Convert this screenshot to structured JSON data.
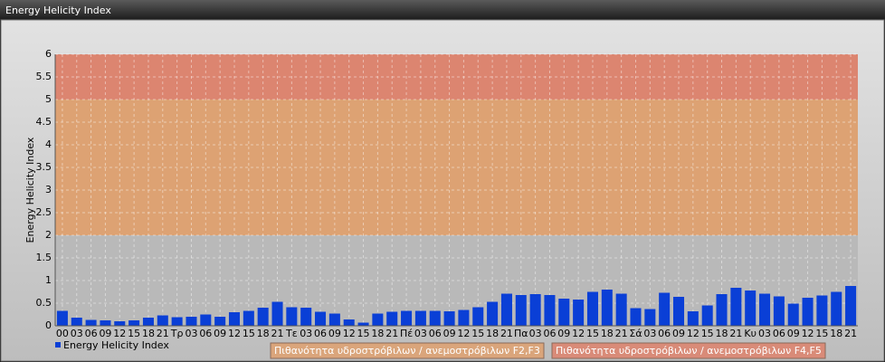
{
  "chart_data": {
    "type": "bar",
    "title": "Energy Helicity Index",
    "ylabel": "Energy Helicity Index",
    "categories": [
      "00",
      "03",
      "06",
      "09",
      "12",
      "15",
      "18",
      "21",
      "Τρ",
      "03",
      "06",
      "09",
      "12",
      "15",
      "18",
      "21",
      "Τε",
      "03",
      "06",
      "09",
      "12",
      "15",
      "18",
      "21",
      "Πέ",
      "03",
      "06",
      "09",
      "12",
      "15",
      "18",
      "21",
      "Πα",
      "03",
      "06",
      "09",
      "12",
      "15",
      "18",
      "21",
      "Σά",
      "03",
      "06",
      "09",
      "12",
      "15",
      "18",
      "21",
      "Κυ",
      "03",
      "06",
      "09",
      "12",
      "15",
      "18",
      "21"
    ],
    "series": [
      {
        "name": "Energy Helicity Index",
        "color": "#0a3fd6",
        "values": [
          0.33,
          0.18,
          0.13,
          0.12,
          0.1,
          0.12,
          0.18,
          0.23,
          0.19,
          0.2,
          0.25,
          0.2,
          0.3,
          0.33,
          0.4,
          0.53,
          0.41,
          0.4,
          0.31,
          0.27,
          0.14,
          0.07,
          0.27,
          0.31,
          0.33,
          0.33,
          0.33,
          0.32,
          0.35,
          0.41,
          0.53,
          0.71,
          0.68,
          0.7,
          0.68,
          0.6,
          0.58,
          0.75,
          0.8,
          0.71,
          0.39,
          0.37,
          0.73,
          0.64,
          0.32,
          0.45,
          0.7,
          0.84,
          0.78,
          0.71,
          0.65,
          0.49,
          0.62,
          0.67,
          0.75,
          0.88
        ]
      }
    ],
    "bands": [
      {
        "name": "Πιθανότητα υδροστρόβιλων / ανεμοστρόβιλων F2,F3",
        "from": 2,
        "to": 5,
        "color": "#dda273"
      },
      {
        "name": "Πιθανότητα υδροστρόβιλων / ανεμοστρόβιλων F4,F5",
        "from": 5,
        "to": 6,
        "color": "#dc8570"
      }
    ],
    "ylim": [
      0,
      6
    ],
    "yticks": [
      0,
      0.5,
      1,
      1.5,
      2,
      2.5,
      3,
      3.5,
      4,
      4.5,
      5,
      5.5,
      6
    ],
    "grid": true
  }
}
